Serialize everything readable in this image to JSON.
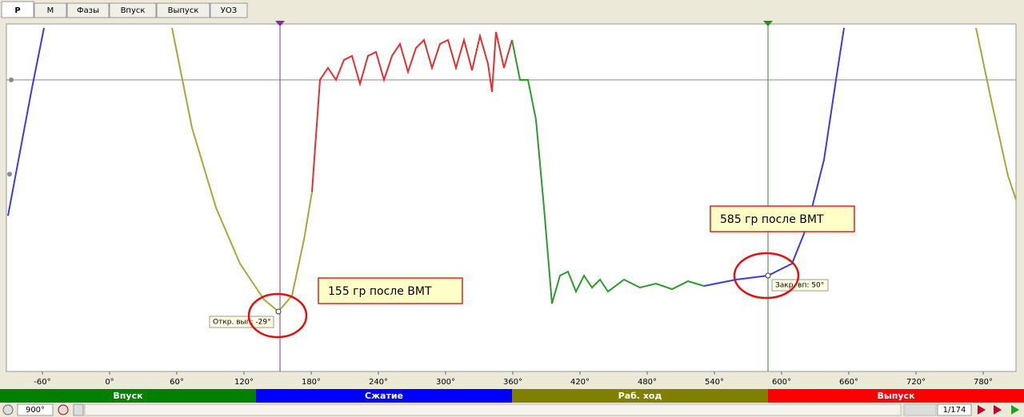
{
  "tabs": [
    "Р",
    "М",
    "Фазы",
    "Впуск",
    "Выпуск",
    "УОЗ"
  ],
  "x_axis": {
    "labels": [
      "-60°",
      "0°",
      "60°",
      "120°",
      "180°",
      "240°",
      "300°",
      "360°",
      "420°",
      "480°",
      "540°",
      "600°",
      "660°",
      "720°",
      "780°"
    ]
  },
  "cursor_labels": [
    "Откр. вып: -29°",
    "Закр. вп: 50°"
  ],
  "annotations": [
    "155 гр после ВМТ",
    "585 гр после ВМТ"
  ],
  "phases": [
    "Впуск",
    "Сжатие",
    "Раб. ход",
    "Выпуск"
  ],
  "status": {
    "zoom": "900°",
    "frame": "1/174"
  }
}
